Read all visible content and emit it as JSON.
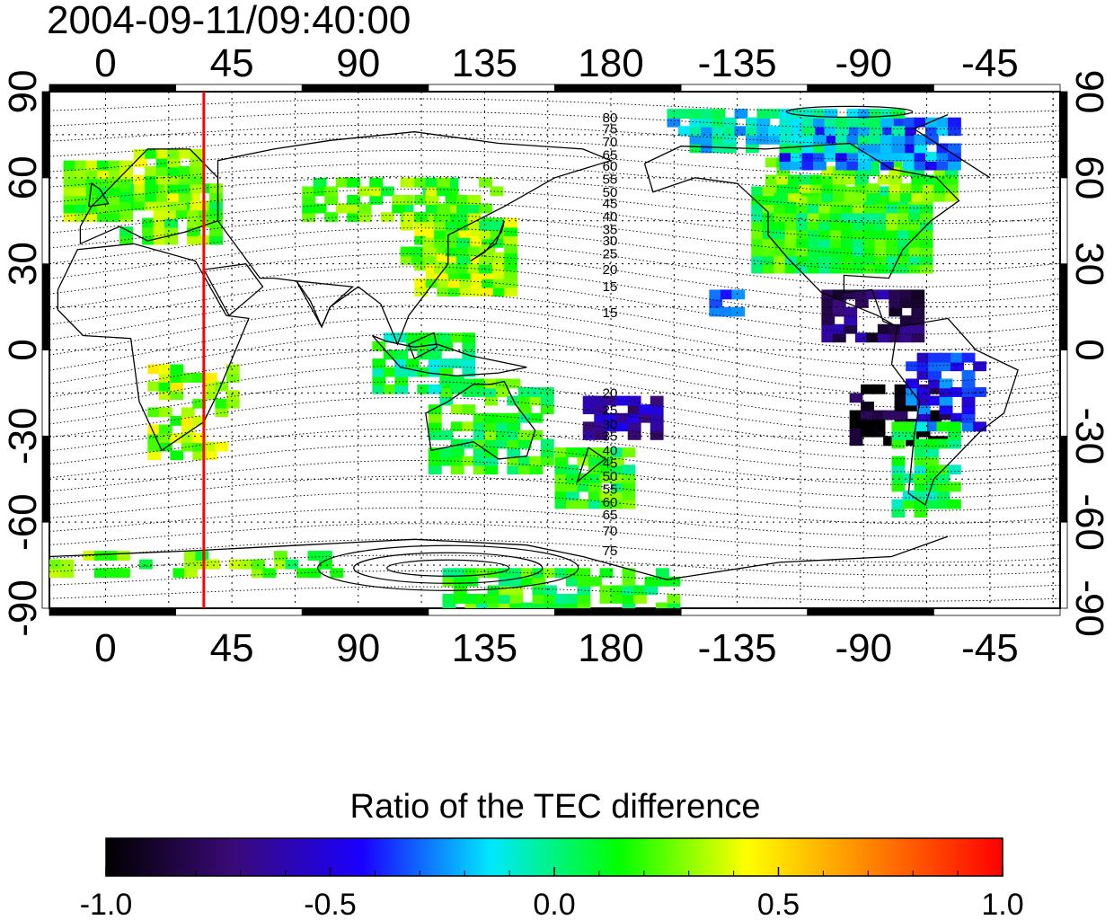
{
  "timestamp": "2004-09-11/09:40:00",
  "colorbar": {
    "title": "Ratio of the TEC difference",
    "min": -1.0,
    "max": 1.0,
    "ticks": [
      "-1.0",
      "-0.5",
      "0.0",
      "0.5",
      "1.0"
    ],
    "stops": [
      "#000000",
      "#3a0a78",
      "#1a00ff",
      "#00e8ff",
      "#00ff00",
      "#ffff00",
      "#ff8000",
      "#ff0000"
    ]
  },
  "axes": {
    "x_ticks": [
      "0",
      "45",
      "90",
      "135",
      "180",
      "-135",
      "-90",
      "-45"
    ],
    "y_ticks": [
      "90",
      "60",
      "30",
      "0",
      "-30",
      "-60",
      "-90"
    ],
    "lon_start": -20,
    "lon_end": 340,
    "lat_range": [
      -90,
      90
    ]
  },
  "marker_line": {
    "longitude": 35,
    "color": "#ff0000"
  },
  "contour_labels": [
    "80",
    "75",
    "70",
    "65",
    "60",
    "55",
    "50",
    "45",
    "40",
    "35",
    "30",
    "25",
    "20",
    "15",
    "15",
    "20",
    "25",
    "30",
    "35",
    "40",
    "45",
    "50",
    "55",
    "60",
    "65",
    "70",
    "75"
  ],
  "colors": {
    "coastline": "#000000",
    "grid": "#000000",
    "contour": "#000000"
  }
}
